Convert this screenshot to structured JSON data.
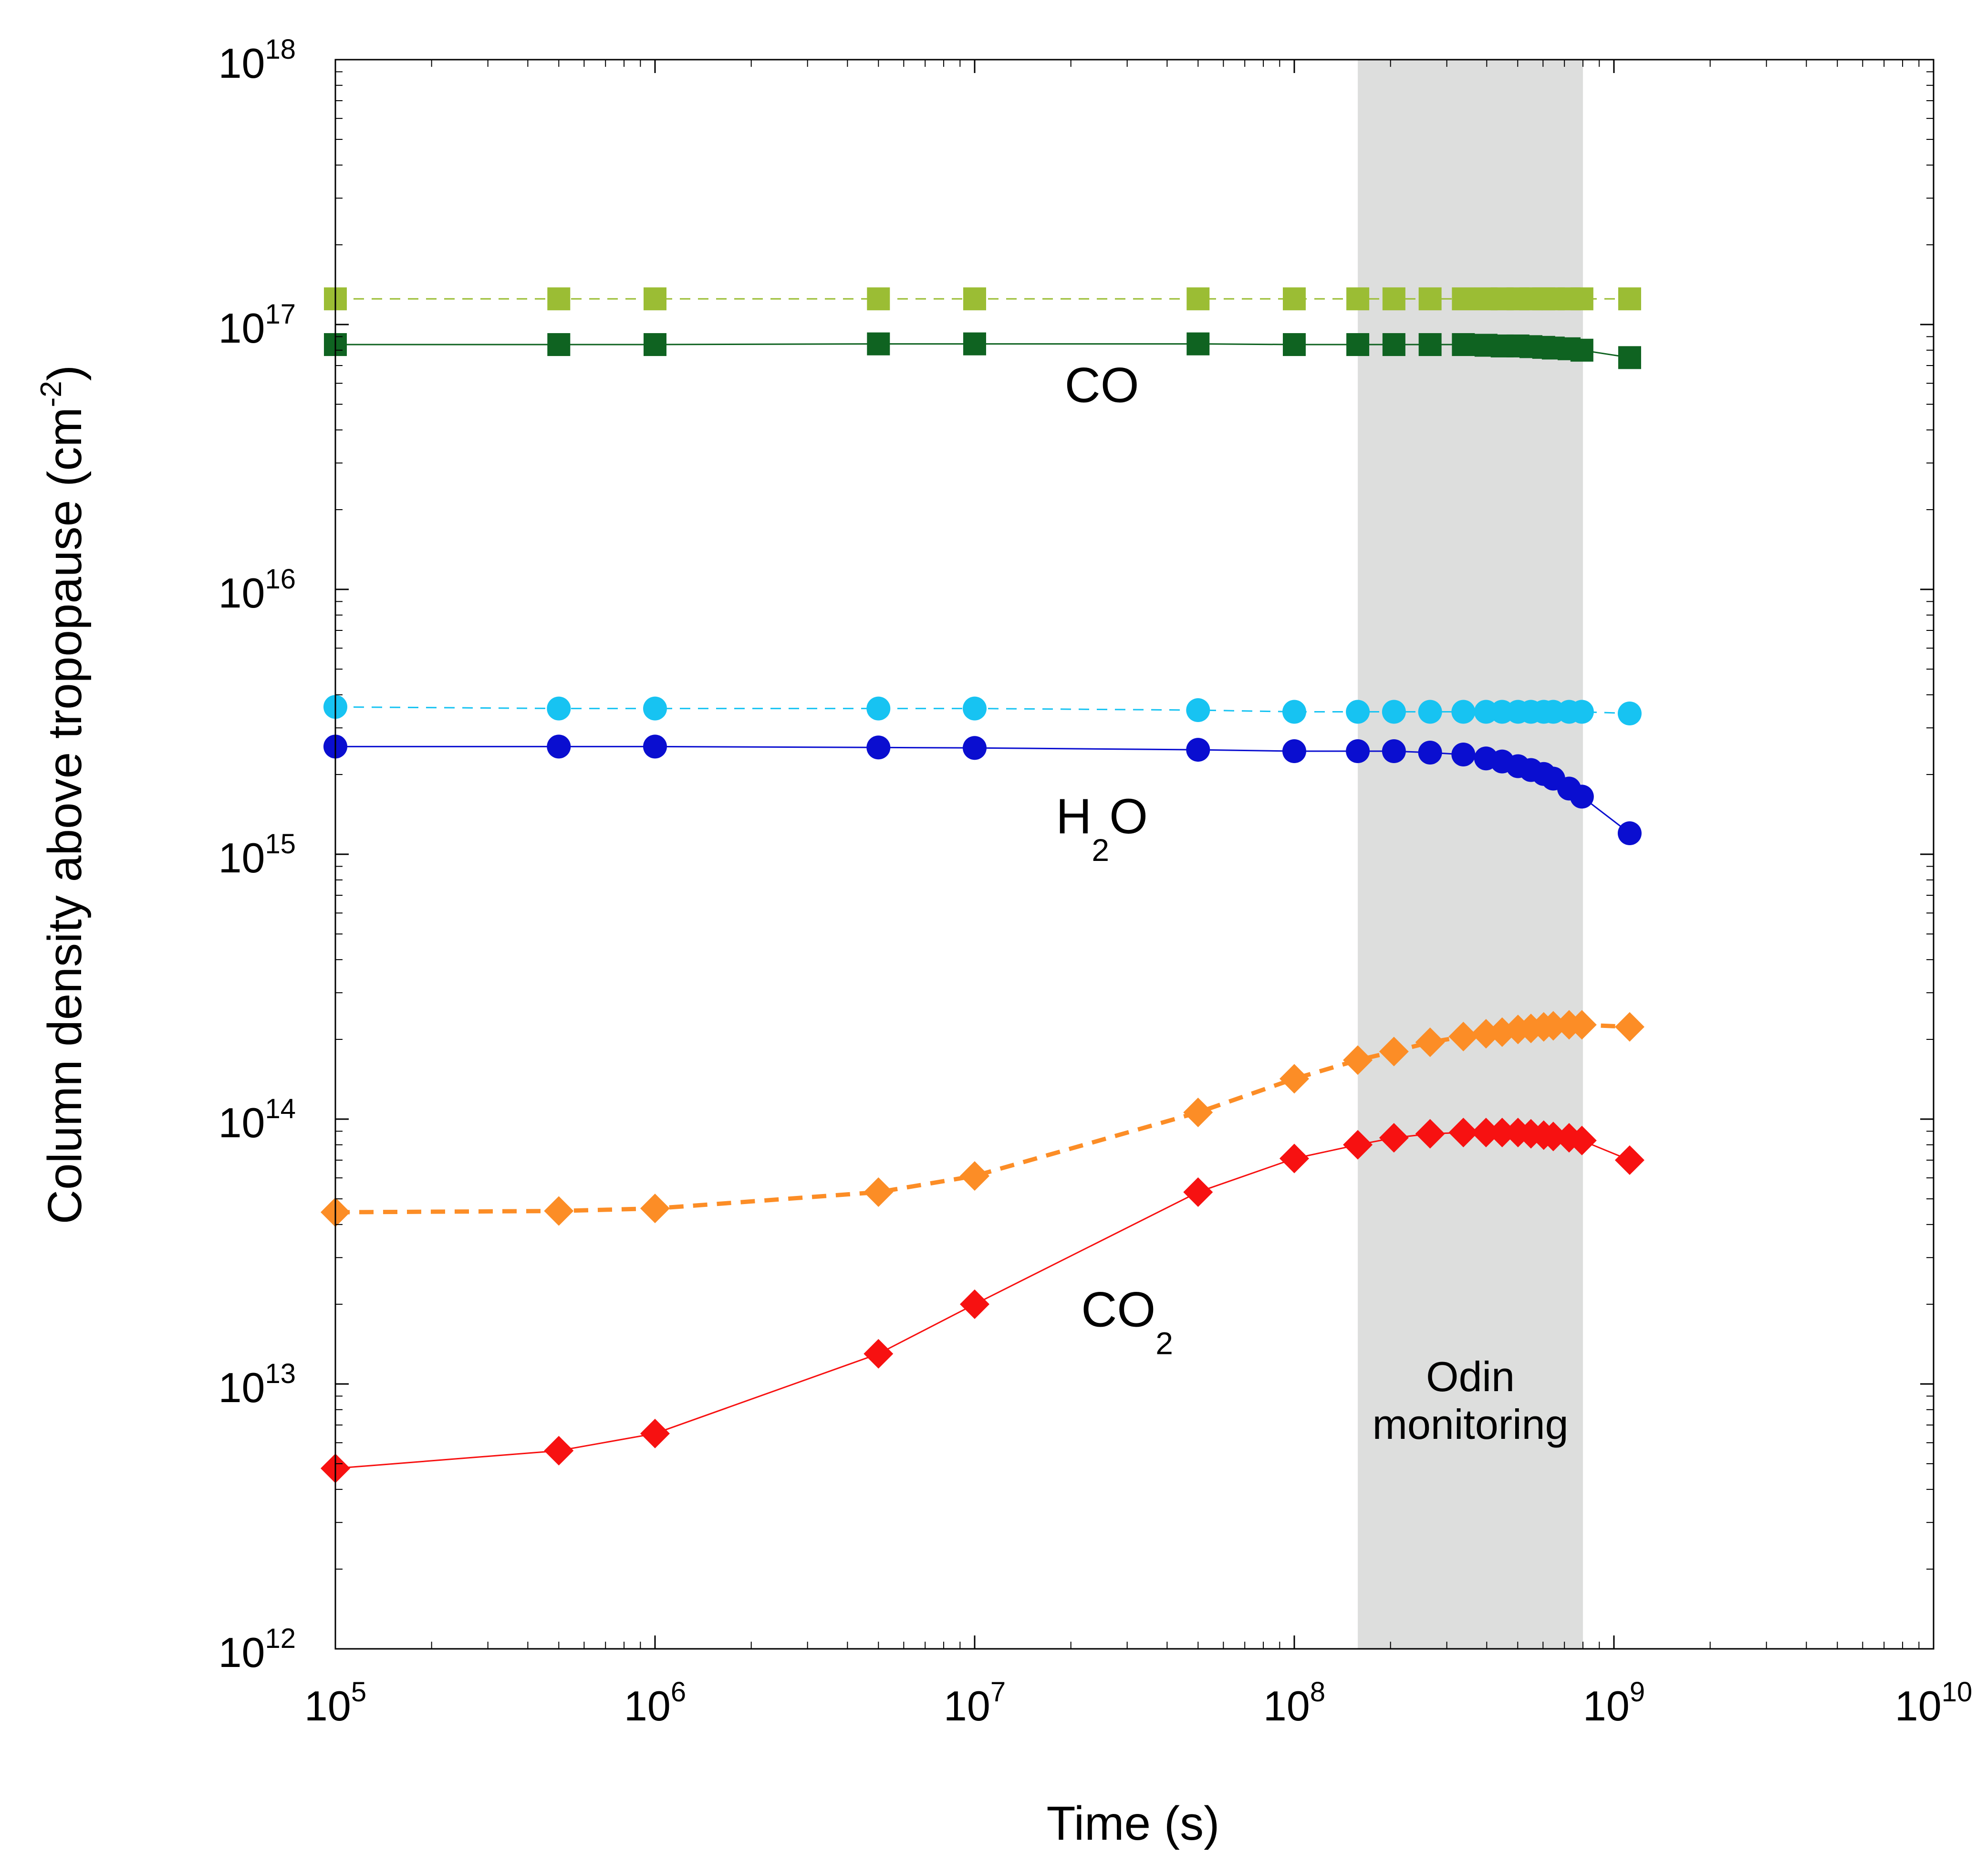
{
  "chart_data": {
    "type": "scatter",
    "title": "",
    "xlabel": "Time (s)",
    "ylabel": {
      "main": "Column density above tropopause (cm",
      "sup": "-2",
      "close": ")"
    },
    "xscale": "log",
    "yscale": "log",
    "xlim": [
      100000,
      10000000000
    ],
    "ylim": [
      1000000000000,
      1000000000000000000
    ],
    "x_ticks": [
      {
        "base": "10",
        "exp": "5",
        "value": 100000
      },
      {
        "base": "10",
        "exp": "6",
        "value": 1000000
      },
      {
        "base": "10",
        "exp": "7",
        "value": 10000000
      },
      {
        "base": "10",
        "exp": "8",
        "value": 100000000
      },
      {
        "base": "10",
        "exp": "9",
        "value": 1000000000
      },
      {
        "base": "10",
        "exp": "10",
        "value": 10000000000
      }
    ],
    "y_ticks": [
      {
        "base": "10",
        "exp": "12",
        "value": 1000000000000.0
      },
      {
        "base": "10",
        "exp": "13",
        "value": 10000000000000.0
      },
      {
        "base": "10",
        "exp": "14",
        "value": 100000000000000.0
      },
      {
        "base": "10",
        "exp": "15",
        "value": 1000000000000000.0
      },
      {
        "base": "10",
        "exp": "16",
        "value": 1e+16
      },
      {
        "base": "10",
        "exp": "17",
        "value": 1e+17
      },
      {
        "base": "10",
        "exp": "18",
        "value": 1e+18
      }
    ],
    "shaded_region": {
      "x_range": [
        158000000,
        800000000
      ],
      "label": [
        "Odin",
        "monitoring"
      ],
      "color": "#dddedd"
    },
    "x": [
      100000,
      500000,
      1000000,
      5000000,
      10000000,
      50000000,
      100000000,
      158000000,
      205000000,
      266000000,
      338000000,
      398000000,
      447000000,
      501000000,
      550000000,
      603000000,
      646000000,
      724000000,
      794000000,
      1120000000
    ],
    "series": [
      {
        "name": "CO (dashed)",
        "group": "CO",
        "color": "#9bbd34",
        "marker": "square",
        "line": "dashed",
        "line_width": 3,
        "values": [
          1.25e+17,
          1.25e+17,
          1.25e+17,
          1.25e+17,
          1.25e+17,
          1.25e+17,
          1.25e+17,
          1.25e+17,
          1.25e+17,
          1.25e+17,
          1.25e+17,
          1.25e+17,
          1.25e+17,
          1.25e+17,
          1.25e+17,
          1.25e+17,
          1.25e+17,
          1.25e+17,
          1.25e+17,
          1.25e+17
        ]
      },
      {
        "name": "CO (solid)",
        "group": "CO",
        "color": "#0f6321",
        "marker": "square",
        "line": "solid",
        "line_width": 3,
        "values": [
          8.4e+16,
          8.4e+16,
          8.4e+16,
          8.45e+16,
          8.45e+16,
          8.45e+16,
          8.4e+16,
          8.4e+16,
          8.4e+16,
          8.4e+16,
          8.4e+16,
          8.35e+16,
          8.3e+16,
          8.3e+16,
          8.25e+16,
          8.2e+16,
          8.15e+16,
          8.1e+16,
          8e+16,
          7.5e+16
        ]
      },
      {
        "name": "H2O (dashed)",
        "group": "H2O",
        "color": "#17c3f2",
        "marker": "circle",
        "line": "dashed",
        "line_width": 3,
        "values": [
          3600000000000000.0,
          3550000000000000.0,
          3550000000000000.0,
          3550000000000000.0,
          3550000000000000.0,
          3500000000000000.0,
          3450000000000000.0,
          3450000000000000.0,
          3450000000000000.0,
          3450000000000000.0,
          3450000000000000.0,
          3450000000000000.0,
          3450000000000000.0,
          3450000000000000.0,
          3450000000000000.0,
          3450000000000000.0,
          3450000000000000.0,
          3450000000000000.0,
          3450000000000000.0,
          3400000000000000.0
        ]
      },
      {
        "name": "H2O (solid)",
        "group": "H2O",
        "color": "#0a0ed0",
        "marker": "circle",
        "line": "solid",
        "line_width": 3,
        "values": [
          2550000000000000.0,
          2550000000000000.0,
          2550000000000000.0,
          2530000000000000.0,
          2520000000000000.0,
          2480000000000000.0,
          2450000000000000.0,
          2450000000000000.0,
          2450000000000000.0,
          2420000000000000.0,
          2380000000000000.0,
          2300000000000000.0,
          2240000000000000.0,
          2150000000000000.0,
          2080000000000000.0,
          2010000000000000.0,
          1930000000000000.0,
          1770000000000000.0,
          1650000000000000.0,
          1200000000000000.0
        ]
      },
      {
        "name": "CO2 (dashed)",
        "group": "CO2",
        "color": "#fc8d26",
        "marker": "diamond",
        "line": "dashed",
        "line_width": 9,
        "values": [
          44500000000000.0,
          45000000000000.0,
          46000000000000.0,
          53000000000000.0,
          61000000000000.0,
          106000000000000.0,
          142000000000000.0,
          167000000000000.0,
          180000000000000.0,
          195000000000000.0,
          205000000000000.0,
          210000000000000.0,
          213000000000000.0,
          218000000000000.0,
          220000000000000.0,
          223000000000000.0,
          225000000000000.0,
          227000000000000.0,
          227000000000000.0,
          223000000000000.0
        ]
      },
      {
        "name": "CO2 (solid)",
        "group": "CO2",
        "color": "#f71111",
        "marker": "diamond",
        "line": "solid",
        "line_width": 3,
        "values": [
          4800000000000.0,
          5600000000000.0,
          6500000000000.0,
          13000000000000.0,
          20000000000000.0,
          53000000000000.0,
          71000000000000.0,
          80000000000000.0,
          85000000000000.0,
          88000000000000.0,
          89000000000000.0,
          89000000000000.0,
          89000000000000.0,
          89000000000000.0,
          88000000000000.0,
          87000000000000.0,
          86000000000000.0,
          85000000000000.0,
          83000000000000.0,
          70000000000000.0
        ]
      }
    ],
    "annotations": [
      {
        "base": "CO",
        "sub": "",
        "x": 25000000,
        "y": 5.1e+16
      },
      {
        "base": "H",
        "sub": "2",
        "tail": "O",
        "x": 25000000,
        "y": 1200000000000000.0
      },
      {
        "base": "CO",
        "sub": "2",
        "tail": "",
        "x": 30000000,
        "y": 16500000000000.0
      }
    ]
  }
}
